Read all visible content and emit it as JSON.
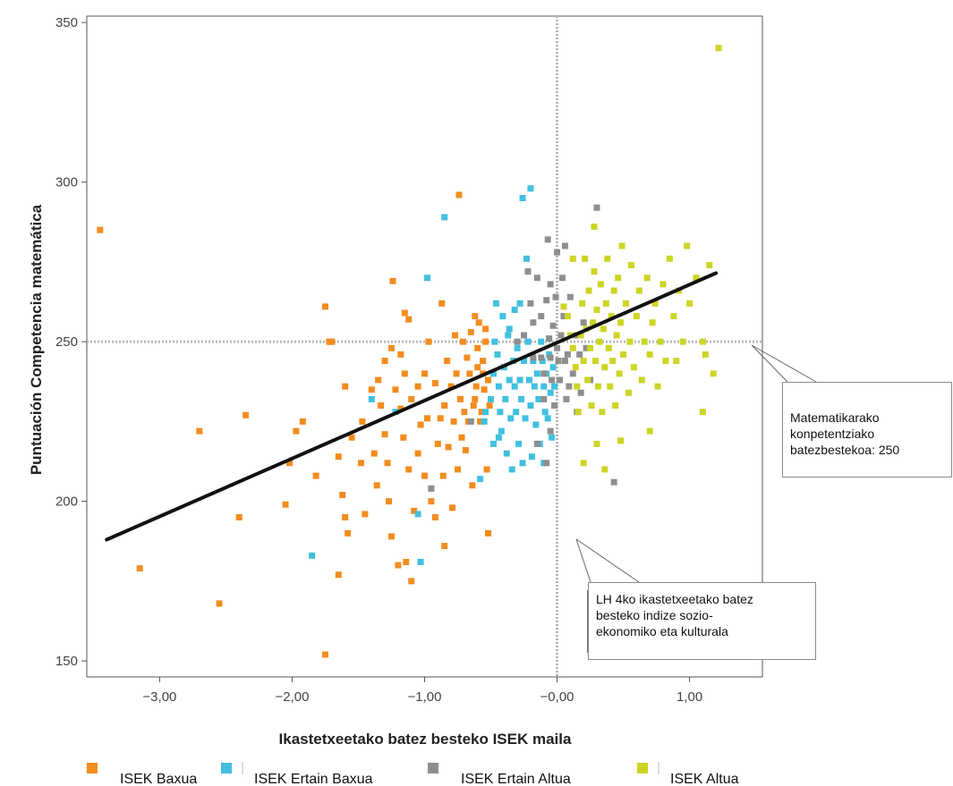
{
  "chart_data": {
    "type": "scatter",
    "xlabel": "Ikastetxeetako batez besteko ISEK maila",
    "ylabel": "Puntuación Competencia matemática",
    "xlim": [
      -3.55,
      1.55
    ],
    "ylim": [
      145,
      352
    ],
    "x_ticks": [
      -3,
      -2,
      -1,
      0,
      1
    ],
    "x_tick_labels": [
      "−3,00",
      "−2,00",
      "−1,00",
      "−0,00",
      "1,00"
    ],
    "y_ticks": [
      150,
      200,
      250,
      300,
      350
    ],
    "y_tick_labels": [
      "150",
      "200",
      "250",
      "300",
      "350"
    ],
    "grid": false,
    "reference_lines": {
      "x": 0,
      "y": 250
    },
    "regression_line": {
      "x": [
        -3.4,
        1.2
      ],
      "y": [
        188,
        271.5
      ]
    },
    "legend_position": "bottom",
    "series": [
      {
        "name": "ISEK Baxua",
        "color": "#F28C1E",
        "points": [
          [
            -3.45,
            285
          ],
          [
            -3.15,
            179
          ],
          [
            -2.7,
            222
          ],
          [
            -2.55,
            168
          ],
          [
            -2.4,
            195
          ],
          [
            -2.35,
            227
          ],
          [
            -2.05,
            199
          ],
          [
            -2.02,
            212
          ],
          [
            -1.97,
            222
          ],
          [
            -1.92,
            225
          ],
          [
            -1.82,
            208
          ],
          [
            -1.75,
            261
          ],
          [
            -1.72,
            250
          ],
          [
            -1.7,
            250
          ],
          [
            -1.75,
            152
          ],
          [
            -1.65,
            177
          ],
          [
            -1.65,
            214
          ],
          [
            -1.62,
            202
          ],
          [
            -1.6,
            195
          ],
          [
            -1.58,
            190
          ],
          [
            -1.6,
            236
          ],
          [
            -1.55,
            220
          ],
          [
            -1.48,
            212
          ],
          [
            -1.47,
            225
          ],
          [
            -1.45,
            196
          ],
          [
            -1.4,
            235
          ],
          [
            -1.38,
            215
          ],
          [
            -1.36,
            205
          ],
          [
            -1.35,
            238
          ],
          [
            -1.33,
            230
          ],
          [
            -1.3,
            244
          ],
          [
            -1.3,
            221
          ],
          [
            -1.28,
            212
          ],
          [
            -1.27,
            200
          ],
          [
            -1.25,
            248
          ],
          [
            -1.25,
            189
          ],
          [
            -1.24,
            269
          ],
          [
            -1.22,
            235
          ],
          [
            -1.2,
            180
          ],
          [
            -1.18,
            246
          ],
          [
            -1.18,
            229
          ],
          [
            -1.16,
            220
          ],
          [
            -1.15,
            259
          ],
          [
            -1.15,
            240
          ],
          [
            -1.14,
            181
          ],
          [
            -1.12,
            257
          ],
          [
            -1.12,
            210
          ],
          [
            -1.1,
            232
          ],
          [
            -1.1,
            175
          ],
          [
            -1.08,
            197
          ],
          [
            -1.05,
            236
          ],
          [
            -1.05,
            215
          ],
          [
            -1.03,
            224
          ],
          [
            -1.0,
            240
          ],
          [
            -1.0,
            208
          ],
          [
            -0.98,
            226
          ],
          [
            -0.97,
            250
          ],
          [
            -0.95,
            200
          ],
          [
            -0.92,
            237
          ],
          [
            -0.92,
            195
          ],
          [
            -0.9,
            218
          ],
          [
            -0.88,
            226
          ],
          [
            -0.87,
            262
          ],
          [
            -0.86,
            208
          ],
          [
            -0.85,
            186
          ],
          [
            -0.85,
            230
          ],
          [
            -0.83,
            244
          ],
          [
            -0.82,
            217
          ],
          [
            -0.8,
            236
          ],
          [
            -0.79,
            198
          ],
          [
            -0.78,
            225
          ],
          [
            -0.77,
            252
          ],
          [
            -0.76,
            240
          ],
          [
            -0.75,
            210
          ],
          [
            -0.74,
            296
          ],
          [
            -0.73,
            232
          ],
          [
            -0.72,
            220
          ],
          [
            -0.71,
            250
          ],
          [
            -0.7,
            228
          ],
          [
            -0.69,
            216
          ],
          [
            -0.68,
            245
          ],
          [
            -0.67,
            225
          ],
          [
            -0.66,
            240
          ],
          [
            -0.65,
            253
          ],
          [
            -0.64,
            205
          ],
          [
            -0.63,
            230
          ],
          [
            -0.62,
            232
          ],
          [
            -0.62,
            258
          ],
          [
            -0.61,
            236
          ],
          [
            -0.6,
            242
          ],
          [
            -0.6,
            248
          ],
          [
            -0.59,
            256
          ],
          [
            -0.58,
            225
          ],
          [
            -0.57,
            228
          ],
          [
            -0.56,
            244
          ],
          [
            -0.56,
            240
          ],
          [
            -0.55,
            235
          ],
          [
            -0.54,
            250
          ],
          [
            -0.54,
            254
          ],
          [
            -0.53,
            210
          ],
          [
            -0.52,
            238
          ],
          [
            -0.52,
            190
          ],
          [
            -0.51,
            230
          ]
        ]
      },
      {
        "name": "ISEK Ertain Baxua",
        "color": "#41C0DF",
        "points": [
          [
            -1.85,
            183
          ],
          [
            -1.4,
            232
          ],
          [
            -1.22,
            228
          ],
          [
            -1.05,
            196
          ],
          [
            -1.03,
            181
          ],
          [
            -0.98,
            270
          ],
          [
            -0.85,
            289
          ],
          [
            -0.58,
            207
          ],
          [
            -0.55,
            225
          ],
          [
            -0.54,
            228
          ],
          [
            -0.5,
            232
          ],
          [
            -0.48,
            240
          ],
          [
            -0.48,
            218
          ],
          [
            -0.47,
            250
          ],
          [
            -0.46,
            262
          ],
          [
            -0.45,
            246
          ],
          [
            -0.44,
            236
          ],
          [
            -0.43,
            228
          ],
          [
            -0.42,
            222
          ],
          [
            -0.41,
            258
          ],
          [
            -0.4,
            242
          ],
          [
            -0.39,
            232
          ],
          [
            -0.38,
            215
          ],
          [
            -0.37,
            252
          ],
          [
            -0.36,
            238
          ],
          [
            -0.35,
            226
          ],
          [
            -0.34,
            210
          ],
          [
            -0.33,
            244
          ],
          [
            -0.32,
            236
          ],
          [
            -0.32,
            260
          ],
          [
            -0.31,
            228
          ],
          [
            -0.3,
            248
          ],
          [
            -0.29,
            218
          ],
          [
            -0.28,
            238
          ],
          [
            -0.27,
            232
          ],
          [
            -0.26,
            212
          ],
          [
            -0.25,
            244
          ],
          [
            -0.24,
            226
          ],
          [
            -0.23,
            276
          ],
          [
            -0.22,
            250
          ],
          [
            -0.21,
            238
          ],
          [
            -0.2,
            230
          ],
          [
            -0.2,
            298
          ],
          [
            -0.19,
            214
          ],
          [
            -0.18,
            244
          ],
          [
            -0.17,
            236
          ],
          [
            -0.16,
            224
          ],
          [
            -0.15,
            240
          ],
          [
            -0.14,
            232
          ],
          [
            -0.13,
            218
          ],
          [
            -0.12,
            250
          ],
          [
            -0.11,
            244
          ],
          [
            -0.1,
            236
          ],
          [
            -0.1,
            212
          ],
          [
            -0.09,
            228
          ],
          [
            -0.08,
            240
          ],
          [
            -0.07,
            226
          ],
          [
            -0.06,
            246
          ],
          [
            -0.05,
            234
          ],
          [
            -0.04,
            220
          ],
          [
            -0.03,
            242
          ],
          [
            -0.02,
            236
          ],
          [
            -0.26,
            295
          ],
          [
            -0.36,
            254
          ],
          [
            -0.44,
            220
          ],
          [
            -0.28,
            262
          ]
        ]
      },
      {
        "name": "ISEK Ertain Altua",
        "color": "#8E8E8E",
        "points": [
          [
            -0.95,
            204
          ],
          [
            -0.65,
            225
          ],
          [
            -0.3,
            250
          ],
          [
            -0.2,
            262
          ],
          [
            -0.18,
            245
          ],
          [
            -0.15,
            270
          ],
          [
            -0.12,
            258
          ],
          [
            -0.1,
            240
          ],
          [
            -0.1,
            232
          ],
          [
            -0.08,
            263
          ],
          [
            -0.07,
            282
          ],
          [
            -0.06,
            251
          ],
          [
            -0.05,
            245
          ],
          [
            -0.04,
            238
          ],
          [
            -0.03,
            255
          ],
          [
            -0.02,
            230
          ],
          [
            -0.01,
            264
          ],
          [
            0.0,
            278
          ],
          [
            0.0,
            248
          ],
          [
            0.01,
            244
          ],
          [
            0.02,
            238
          ],
          [
            0.03,
            252
          ],
          [
            0.04,
            270
          ],
          [
            0.05,
            258
          ],
          [
            0.06,
            244
          ],
          [
            0.07,
            232
          ],
          [
            0.08,
            246
          ],
          [
            0.09,
            236
          ],
          [
            0.1,
            264
          ],
          [
            0.12,
            240
          ],
          [
            0.14,
            252
          ],
          [
            0.15,
            228
          ],
          [
            0.18,
            234
          ],
          [
            0.2,
            256
          ],
          [
            0.22,
            248
          ],
          [
            0.25,
            238
          ],
          [
            0.3,
            292
          ],
          [
            0.43,
            206
          ],
          [
            -0.05,
            222
          ],
          [
            -0.15,
            218
          ],
          [
            -0.22,
            272
          ],
          [
            -0.12,
            245
          ],
          [
            -0.08,
            212
          ],
          [
            -0.25,
            252
          ],
          [
            0.06,
            280
          ],
          [
            -0.18,
            256
          ],
          [
            -0.05,
            268
          ],
          [
            0.17,
            246
          ]
        ]
      },
      {
        "name": "ISEK Altua",
        "color": "#CCD524",
        "points": [
          [
            0.05,
            261
          ],
          [
            0.08,
            258
          ],
          [
            0.1,
            252
          ],
          [
            0.12,
            248
          ],
          [
            0.14,
            242
          ],
          [
            0.15,
            236
          ],
          [
            0.16,
            228
          ],
          [
            0.18,
            252
          ],
          [
            0.19,
            262
          ],
          [
            0.2,
            244
          ],
          [
            0.21,
            276
          ],
          [
            0.22,
            254
          ],
          [
            0.23,
            238
          ],
          [
            0.24,
            266
          ],
          [
            0.25,
            248
          ],
          [
            0.26,
            230
          ],
          [
            0.27,
            256
          ],
          [
            0.28,
            272
          ],
          [
            0.29,
            244
          ],
          [
            0.3,
            260
          ],
          [
            0.31,
            236
          ],
          [
            0.32,
            250
          ],
          [
            0.33,
            268
          ],
          [
            0.34,
            228
          ],
          [
            0.35,
            254
          ],
          [
            0.36,
            242
          ],
          [
            0.37,
            262
          ],
          [
            0.38,
            276
          ],
          [
            0.39,
            248
          ],
          [
            0.4,
            236
          ],
          [
            0.41,
            258
          ],
          [
            0.42,
            244
          ],
          [
            0.43,
            266
          ],
          [
            0.44,
            230
          ],
          [
            0.45,
            252
          ],
          [
            0.46,
            270
          ],
          [
            0.47,
            240
          ],
          [
            0.48,
            256
          ],
          [
            0.49,
            280
          ],
          [
            0.5,
            246
          ],
          [
            0.52,
            262
          ],
          [
            0.54,
            234
          ],
          [
            0.55,
            250
          ],
          [
            0.56,
            274
          ],
          [
            0.58,
            242
          ],
          [
            0.6,
            258
          ],
          [
            0.62,
            266
          ],
          [
            0.64,
            238
          ],
          [
            0.66,
            250
          ],
          [
            0.68,
            270
          ],
          [
            0.7,
            246
          ],
          [
            0.72,
            256
          ],
          [
            0.74,
            262
          ],
          [
            0.76,
            236
          ],
          [
            0.78,
            250
          ],
          [
            0.8,
            268
          ],
          [
            0.82,
            244
          ],
          [
            0.85,
            276
          ],
          [
            0.88,
            258
          ],
          [
            0.9,
            244
          ],
          [
            0.92,
            266
          ],
          [
            0.95,
            250
          ],
          [
            0.98,
            280
          ],
          [
            1.0,
            262
          ],
          [
            1.05,
            270
          ],
          [
            1.1,
            250
          ],
          [
            1.12,
            246
          ],
          [
            1.15,
            274
          ],
          [
            1.18,
            240
          ],
          [
            1.22,
            342
          ],
          [
            0.2,
            212
          ],
          [
            0.3,
            218
          ],
          [
            0.48,
            219
          ],
          [
            0.7,
            222
          ],
          [
            1.1,
            228
          ],
          [
            0.12,
            276
          ],
          [
            0.28,
            286
          ],
          [
            0.36,
            210
          ]
        ]
      }
    ]
  },
  "annotations": {
    "mean_callout": {
      "lines": [
        "Matematikarako",
        "konpetentziako",
        "batezbestekoa: 250"
      ]
    },
    "isek_callout": {
      "lines": [
        "LH 4ko ikastetxeetako batez",
        "besteko indize sozio-",
        "ekonomiko eta kulturala"
      ]
    }
  }
}
